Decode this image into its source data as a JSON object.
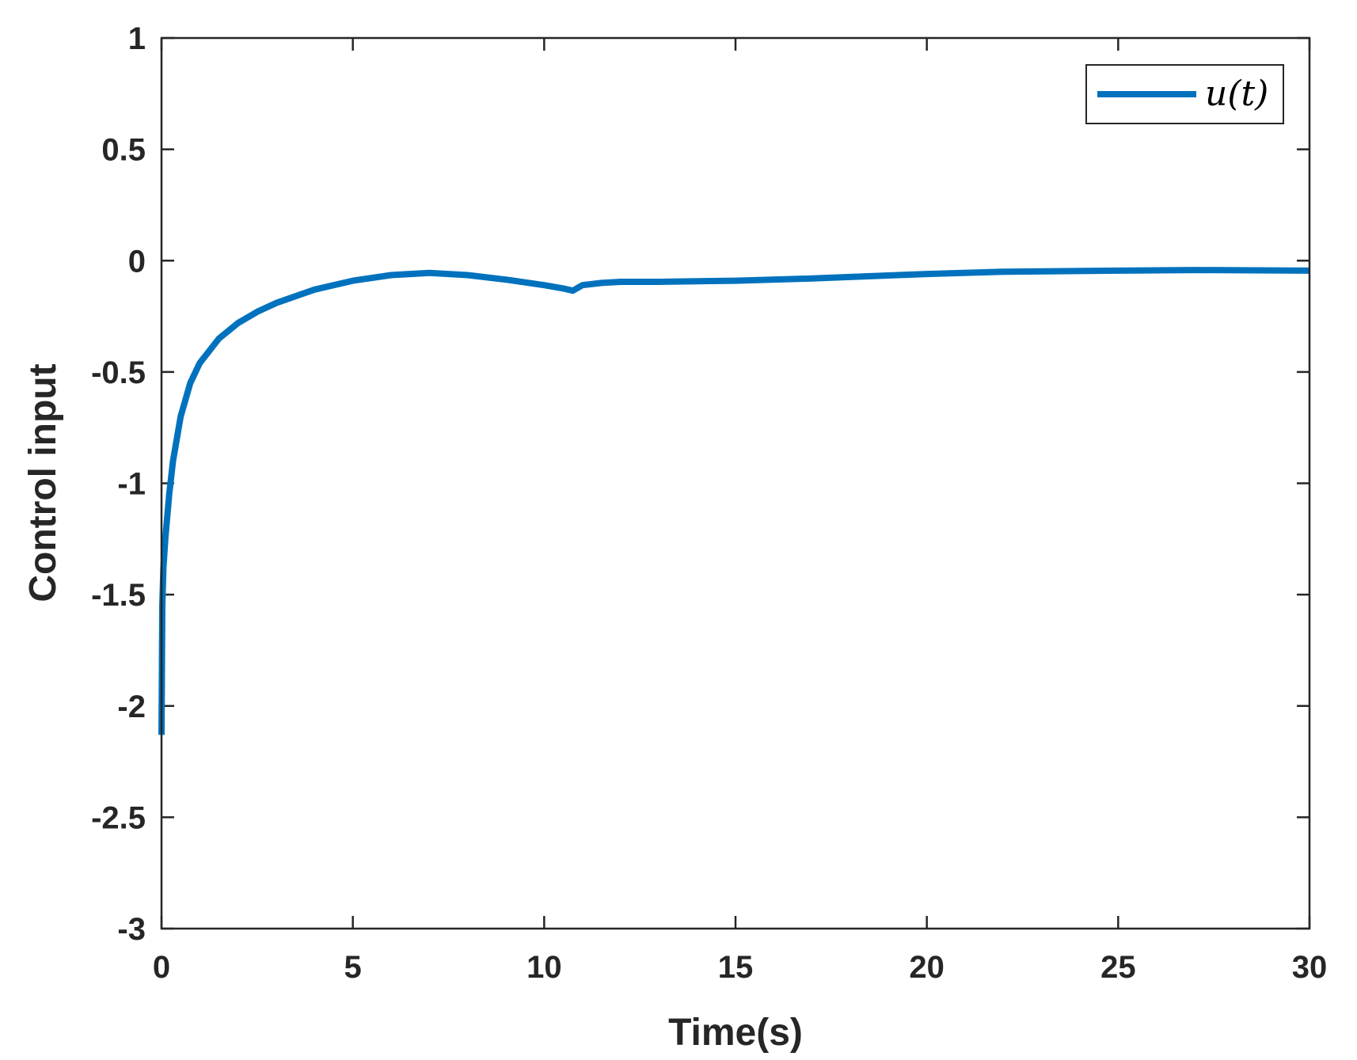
{
  "chart_data": {
    "type": "line",
    "title": "",
    "xlabel": "Time(s)",
    "ylabel": "Control input",
    "xlim": [
      0,
      30
    ],
    "ylim": [
      -3,
      1
    ],
    "xticks": [
      0,
      5,
      10,
      15,
      20,
      25,
      30
    ],
    "xtick_labels": [
      "0",
      "5",
      "10",
      "15",
      "20",
      "25",
      "30"
    ],
    "yticks": [
      -3,
      -2.5,
      -2,
      -1.5,
      -1,
      -0.5,
      0,
      0.5,
      1
    ],
    "ytick_labels": [
      "-3",
      "-2.5",
      "-2",
      "-1.5",
      "-1",
      "-0.5",
      "0",
      "0.5",
      "1"
    ],
    "grid": false,
    "legend": {
      "position": "top-right",
      "entries": [
        "u(t)"
      ]
    },
    "series": [
      {
        "name": "u(t)",
        "color": "#0072BD",
        "x": [
          0,
          0.02,
          0.05,
          0.1,
          0.2,
          0.3,
          0.5,
          0.75,
          1.0,
          1.5,
          2.0,
          2.5,
          3.0,
          4.0,
          5.0,
          6.0,
          7.0,
          8.0,
          9.0,
          10.0,
          10.5,
          10.75,
          11.0,
          11.5,
          12.0,
          13.0,
          15.0,
          17.0,
          20.0,
          22.0,
          25.0,
          27.0,
          30.0
        ],
        "y": [
          -2.13,
          -1.55,
          -1.38,
          -1.25,
          -1.05,
          -0.9,
          -0.7,
          -0.55,
          -0.46,
          -0.35,
          -0.28,
          -0.23,
          -0.19,
          -0.13,
          -0.09,
          -0.065,
          -0.055,
          -0.065,
          -0.085,
          -0.11,
          -0.125,
          -0.135,
          -0.11,
          -0.1,
          -0.095,
          -0.095,
          -0.09,
          -0.08,
          -0.06,
          -0.05,
          -0.045,
          -0.042,
          -0.045
        ]
      }
    ]
  },
  "colors": {
    "series": "#0072BD",
    "axes": "#262626",
    "background": "#ffffff"
  }
}
